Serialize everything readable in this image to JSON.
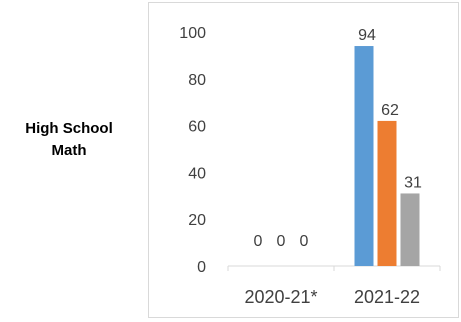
{
  "row_label": {
    "line1": "High School",
    "line2": "Math"
  },
  "colors": {
    "series": [
      "#5b9bd5",
      "#ed7d31",
      "#a5a5a5"
    ],
    "axis": "#d9d9d9",
    "text": "#404040"
  },
  "chart_data": {
    "type": "bar",
    "title": "",
    "xlabel": "",
    "ylabel": "",
    "categories": [
      "2020-21*",
      "2021-22"
    ],
    "series": [
      {
        "values": [
          0,
          94
        ]
      },
      {
        "values": [
          0,
          62
        ]
      },
      {
        "values": [
          0,
          31
        ]
      }
    ],
    "ylim": [
      0,
      100
    ],
    "yticks": [
      0,
      20,
      40,
      60,
      80,
      100
    ],
    "grid": false,
    "legend": "none",
    "data_labels": true
  }
}
